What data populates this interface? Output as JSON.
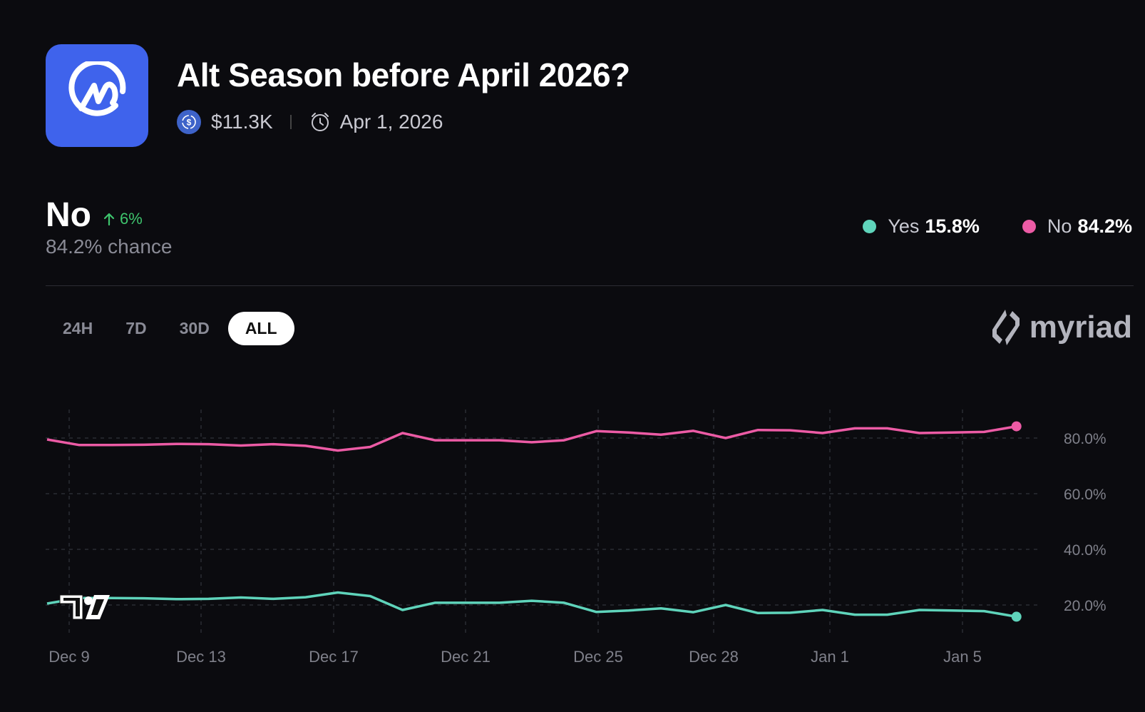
{
  "market": {
    "title": "Alt Season before April 2026?",
    "logo_icon": "coinmarketcap-logo",
    "volume": "$11.3K",
    "volume_icon": "usdc-coin-icon",
    "end_date": "Apr 1, 2026",
    "end_date_icon": "alarm-clock-icon"
  },
  "outcome": {
    "name": "No",
    "delta": "6%",
    "delta_direction": "up",
    "delta_color": "#3ec46d",
    "chance": "84.2% chance"
  },
  "legend": [
    {
      "label": "Yes",
      "value": "15.8%",
      "color": "#5fd4bb"
    },
    {
      "label": "No",
      "value": "84.2%",
      "color": "#ec5ba5"
    }
  ],
  "time_ranges": [
    {
      "label": "24H",
      "active": false
    },
    {
      "label": "7D",
      "active": false
    },
    {
      "label": "30D",
      "active": false
    },
    {
      "label": "ALL",
      "active": true
    }
  ],
  "brand": {
    "name": "myriad"
  },
  "chart_data": {
    "type": "line",
    "title": "Alt Season before April 2026?",
    "xlabel": "",
    "ylabel": "",
    "ylim": [
      10,
      92
    ],
    "y_ticks": [
      "20.0%",
      "40.0%",
      "60.0%",
      "80.0%"
    ],
    "x_ticks": [
      "Dec 9",
      "Dec 13",
      "Dec 17",
      "Dec 21",
      "Dec 25",
      "Dec 28",
      "Jan 1",
      "Jan 5"
    ],
    "grid": true,
    "legend_position": "top-right",
    "x": [
      "Dec 8",
      "Dec 9",
      "Dec 10",
      "Dec 11",
      "Dec 12",
      "Dec 13",
      "Dec 14",
      "Dec 15",
      "Dec 16",
      "Dec 17",
      "Dec 18",
      "Dec 19",
      "Dec 20",
      "Dec 21",
      "Dec 22",
      "Dec 23",
      "Dec 24",
      "Dec 25",
      "Dec 26",
      "Dec 27",
      "Dec 28",
      "Dec 29",
      "Dec 30",
      "Dec 31",
      "Jan 1",
      "Jan 2",
      "Jan 3",
      "Jan 4",
      "Jan 5",
      "Jan 6",
      "Jan 7"
    ],
    "series": [
      {
        "name": "No",
        "color": "#ec5ba5",
        "values": [
          79.5,
          77.5,
          77.5,
          77.6,
          77.9,
          77.8,
          77.3,
          77.8,
          77.2,
          75.5,
          76.8,
          81.8,
          79.2,
          79.2,
          79.2,
          78.5,
          79.2,
          82.5,
          82.0,
          81.2,
          82.6,
          80.0,
          82.9,
          82.8,
          81.8,
          83.5,
          83.5,
          81.8,
          82.0,
          82.2,
          84.2
        ]
      },
      {
        "name": "Yes",
        "color": "#5fd4bb",
        "values": [
          20.5,
          22.5,
          22.5,
          22.4,
          22.1,
          22.2,
          22.7,
          22.2,
          22.8,
          24.5,
          23.2,
          18.2,
          20.8,
          20.8,
          20.8,
          21.5,
          20.8,
          17.5,
          18.0,
          18.8,
          17.4,
          20.0,
          17.1,
          17.2,
          18.2,
          16.5,
          16.5,
          18.2,
          18.0,
          17.8,
          15.8
        ]
      }
    ]
  }
}
